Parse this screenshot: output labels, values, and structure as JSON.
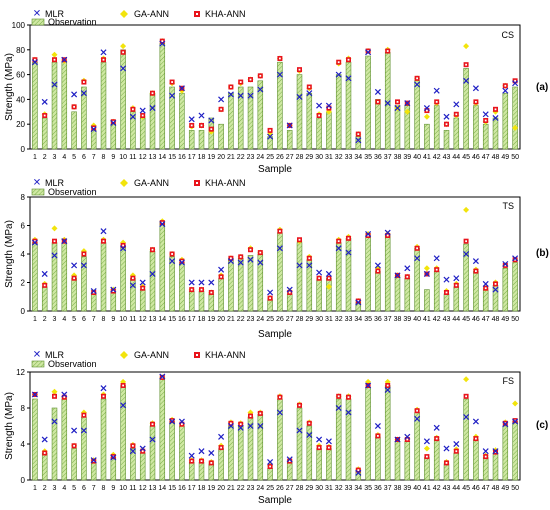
{
  "figure": {
    "panel_labels": [
      "(a)",
      "(b)",
      "(c)"
    ]
  },
  "legend": {
    "mlr": "MLR",
    "observation": "Observation",
    "ga_ann": "GA-ANN",
    "kha_ann": "KHA-ANN"
  },
  "colors": {
    "mlr": "#1f1fc4",
    "ga_ann": "#f2e40c",
    "kha_ann": "#e8141c",
    "bar_fill": "#cfe8a3",
    "bar_hatch": "#6fa83c",
    "bar_edge": "#5f8f2f"
  },
  "chart_data": [
    {
      "type": "bar",
      "tag": "CS",
      "panel": "(a)",
      "xlabel": "Sample",
      "ylabel": "Strength (MPa)",
      "ylim": [
        0,
        100
      ],
      "yticks": [
        0,
        20,
        40,
        60,
        80,
        100
      ],
      "grid": false,
      "legend_position": "top-left",
      "categories": [
        "1",
        "2",
        "3",
        "4",
        "5",
        "6",
        "7",
        "8",
        "9",
        "10",
        "11",
        "12",
        "13",
        "14",
        "15",
        "16",
        "17",
        "18",
        "19",
        "20",
        "21",
        "22",
        "23",
        "24",
        "25",
        "26",
        "27",
        "28",
        "29",
        "30",
        "31",
        "32",
        "33",
        "34",
        "35",
        "36",
        "37",
        "38",
        "39",
        "40",
        "41",
        "42",
        "43",
        "44",
        "45",
        "46",
        "47",
        "48",
        "49",
        "50"
      ],
      "series": [
        {
          "name": "Observation",
          "values": [
            70,
            25,
            70,
            70,
            30,
            50,
            15,
            70,
            20,
            80,
            30,
            25,
            45,
            85,
            50,
            45,
            15,
            15,
            25,
            20,
            45,
            50,
            50,
            55,
            10,
            70,
            15,
            60,
            45,
            25,
            30,
            60,
            70,
            10,
            75,
            40,
            78,
            35,
            35,
            55,
            20,
            35,
            15,
            25,
            65,
            35,
            20,
            25,
            45,
            50
          ]
        },
        {
          "name": "MLR",
          "values": [
            70,
            38,
            52,
            72,
            44,
            45,
            16,
            78,
            21,
            65,
            26,
            31,
            33,
            85,
            43,
            49,
            24,
            27,
            23,
            40,
            44,
            43,
            43,
            48,
            10,
            60,
            19,
            42,
            45,
            35,
            35,
            60,
            57,
            7,
            78,
            46,
            37,
            33,
            37,
            52,
            33,
            47,
            26,
            36,
            55,
            49,
            28,
            25,
            47,
            53
          ]
        },
        {
          "name": "GA-ANN",
          "values": [
            72,
            28,
            76,
            71,
            34,
            55,
            19,
            73,
            22,
            83,
            33,
            26,
            45,
            87,
            53,
            47,
            18,
            19,
            14,
            32,
            50,
            53,
            56,
            59,
            12,
            73,
            19,
            63,
            49,
            28,
            30,
            69,
            73,
            12,
            79,
            38,
            80,
            33,
            30,
            57,
            26,
            37,
            20,
            27,
            83,
            37,
            22,
            30,
            51,
            17
          ]
        },
        {
          "name": "KHA-ANN",
          "values": [
            72,
            27,
            72,
            72,
            34,
            54,
            17,
            72,
            22,
            78,
            32,
            27,
            45,
            87,
            54,
            49,
            19,
            19,
            16,
            32,
            50,
            54,
            56,
            59,
            15,
            73,
            19,
            64,
            50,
            27,
            33,
            70,
            72,
            12,
            79,
            38,
            79,
            38,
            37,
            57,
            31,
            38,
            20,
            28,
            68,
            38,
            23,
            32,
            51,
            55
          ]
        }
      ]
    },
    {
      "type": "bar",
      "tag": "TS",
      "panel": "(b)",
      "xlabel": "Sample",
      "ylabel": "Strength (MPa)",
      "ylim": [
        0,
        8
      ],
      "yticks": [
        0,
        2,
        4,
        6,
        8
      ],
      "grid": false,
      "legend_position": "top-left",
      "categories": [
        "1",
        "2",
        "3",
        "4",
        "5",
        "6",
        "7",
        "8",
        "9",
        "10",
        "11",
        "12",
        "13",
        "14",
        "15",
        "16",
        "17",
        "18",
        "19",
        "20",
        "21",
        "22",
        "23",
        "24",
        "25",
        "26",
        "27",
        "28",
        "29",
        "30",
        "31",
        "32",
        "33",
        "34",
        "35",
        "36",
        "37",
        "38",
        "39",
        "40",
        "41",
        "42",
        "43",
        "44",
        "45",
        "46",
        "47",
        "48",
        "49",
        "50"
      ],
      "series": [
        {
          "name": "Observation",
          "values": [
            4.8,
            1.7,
            4.8,
            4.8,
            2.3,
            3.8,
            1.2,
            4.8,
            1.4,
            4.6,
            2.3,
            1.5,
            4.2,
            6.2,
            3.8,
            3.4,
            1.4,
            1.4,
            1.2,
            2.3,
            3.6,
            3.7,
            3.9,
            4.0,
            0.8,
            5.5,
            1.2,
            4.8,
            3.6,
            2.2,
            2.3,
            4.8,
            5.1,
            0.6,
            5.3,
            2.8,
            5.3,
            2.4,
            2.3,
            4.4,
            1.5,
            2.8,
            1.2,
            1.7,
            4.7,
            2.8,
            1.5,
            1.8,
            3.0,
            3.4
          ]
        },
        {
          "name": "MLR",
          "values": [
            4.8,
            2.6,
            3.9,
            4.9,
            3.2,
            3.2,
            1.4,
            5.6,
            1.5,
            4.4,
            1.8,
            2.0,
            2.6,
            6.1,
            3.5,
            3.4,
            2.0,
            2.0,
            2.0,
            2.9,
            3.5,
            3.4,
            3.6,
            3.4,
            1.3,
            4.4,
            1.5,
            3.2,
            3.2,
            2.7,
            2.6,
            4.4,
            4.1,
            0.6,
            5.4,
            3.2,
            5.5,
            2.5,
            3.0,
            3.7,
            2.6,
            3.7,
            2.2,
            2.3,
            4.0,
            3.5,
            1.9,
            1.5,
            3.3,
            3.7
          ]
        },
        {
          "name": "GA-ANN",
          "values": [
            5.0,
            1.9,
            5.8,
            5.0,
            2.5,
            4.2,
            1.3,
            5.0,
            1.5,
            4.8,
            2.5,
            1.7,
            4.3,
            6.3,
            4.0,
            3.6,
            1.5,
            1.5,
            1.3,
            2.5,
            3.7,
            3.8,
            4.4,
            4.1,
            0.9,
            5.7,
            1.4,
            4.9,
            3.8,
            2.3,
            1.7,
            5.0,
            5.2,
            0.7,
            5.4,
            3.0,
            5.4,
            2.5,
            2.4,
            4.5,
            3.0,
            3.0,
            1.4,
            1.9,
            7.1,
            2.9,
            1.6,
            2.0,
            3.2,
            3.6
          ]
        },
        {
          "name": "KHA-ANN",
          "values": [
            4.9,
            1.8,
            4.9,
            4.9,
            2.3,
            4.0,
            1.3,
            4.9,
            1.4,
            4.6,
            2.3,
            1.6,
            4.3,
            6.2,
            4.0,
            3.5,
            1.5,
            1.5,
            1.3,
            2.4,
            3.7,
            3.8,
            4.3,
            4.1,
            0.9,
            5.6,
            1.3,
            5.0,
            3.7,
            2.3,
            2.3,
            4.9,
            5.1,
            0.7,
            5.3,
            2.8,
            5.3,
            2.5,
            2.4,
            4.4,
            2.6,
            2.9,
            1.3,
            1.8,
            4.9,
            2.8,
            1.6,
            1.9,
            3.2,
            3.6
          ]
        }
      ]
    },
    {
      "type": "bar",
      "tag": "FS",
      "panel": "(c)",
      "xlabel": "Sample",
      "ylabel": "Strength (MPa)",
      "ylim": [
        0,
        12
      ],
      "yticks": [
        0,
        4,
        8,
        12
      ],
      "grid": false,
      "legend_position": "top-left",
      "categories": [
        "1",
        "2",
        "3",
        "4",
        "5",
        "6",
        "7",
        "8",
        "9",
        "10",
        "11",
        "12",
        "13",
        "14",
        "15",
        "16",
        "17",
        "18",
        "19",
        "20",
        "21",
        "22",
        "23",
        "24",
        "25",
        "26",
        "27",
        "28",
        "29",
        "30",
        "31",
        "32",
        "33",
        "34",
        "35",
        "36",
        "37",
        "38",
        "39",
        "40",
        "41",
        "42",
        "43",
        "44",
        "45",
        "46",
        "47",
        "48",
        "49",
        "50"
      ],
      "series": [
        {
          "name": "Observation",
          "values": [
            9.0,
            3.0,
            8.0,
            9.0,
            3.5,
            7.0,
            2.0,
            9.0,
            2.5,
            10.5,
            3.5,
            3.0,
            6.0,
            11.3,
            6.5,
            6.0,
            2.0,
            2.0,
            1.8,
            3.5,
            6.0,
            6.0,
            7.0,
            7.3,
            1.3,
            9.0,
            2.0,
            8.0,
            6.0,
            3.5,
            3.5,
            9.0,
            9.0,
            1.0,
            10.3,
            4.8,
            10.5,
            4.3,
            4.3,
            7.5,
            2.5,
            4.5,
            1.8,
            3.0,
            9.0,
            4.5,
            2.5,
            3.0,
            6.0,
            6.5
          ]
        },
        {
          "name": "MLR",
          "values": [
            9.5,
            4.5,
            6.5,
            9.5,
            5.5,
            5.5,
            2.2,
            10.2,
            2.5,
            8.3,
            3.2,
            3.5,
            4.5,
            11.5,
            6.5,
            6.5,
            2.7,
            3.2,
            3.0,
            4.8,
            6.0,
            5.8,
            6.0,
            6.0,
            2.0,
            7.5,
            2.3,
            5.5,
            5.0,
            4.5,
            4.3,
            8.0,
            7.5,
            0.8,
            10.5,
            6.0,
            10.0,
            4.5,
            4.8,
            6.8,
            4.3,
            5.8,
            3.5,
            4.0,
            7.0,
            6.5,
            3.2,
            3.2,
            6.2,
            6.5
          ]
        },
        {
          "name": "GA-ANN",
          "values": [
            9.5,
            3.2,
            9.8,
            9.2,
            3.8,
            7.5,
            2.2,
            9.5,
            2.8,
            10.9,
            3.9,
            3.3,
            6.3,
            11.4,
            6.7,
            6.2,
            2.2,
            2.2,
            2.0,
            3.8,
            6.4,
            6.3,
            7.5,
            7.5,
            1.6,
            9.3,
            2.2,
            8.4,
            6.4,
            3.8,
            3.7,
            9.3,
            9.3,
            1.2,
            10.9,
            5.0,
            10.9,
            4.5,
            4.6,
            7.8,
            3.5,
            4.7,
            2.0,
            3.4,
            11.2,
            4.8,
            2.7,
            3.3,
            6.4,
            8.5
          ]
        },
        {
          "name": "KHA-ANN",
          "values": [
            9.5,
            3.0,
            9.3,
            9.2,
            3.8,
            7.2,
            2.1,
            9.3,
            2.6,
            10.5,
            3.8,
            3.2,
            6.2,
            11.4,
            6.6,
            6.2,
            2.1,
            2.1,
            1.9,
            3.6,
            6.3,
            6.2,
            7.1,
            7.4,
            1.5,
            9.2,
            2.1,
            8.3,
            6.3,
            3.6,
            3.6,
            9.3,
            9.2,
            1.1,
            10.5,
            4.9,
            10.5,
            4.5,
            4.5,
            7.7,
            2.6,
            4.6,
            1.9,
            3.2,
            9.3,
            4.6,
            2.6,
            3.1,
            6.3,
            6.6
          ]
        }
      ]
    }
  ]
}
